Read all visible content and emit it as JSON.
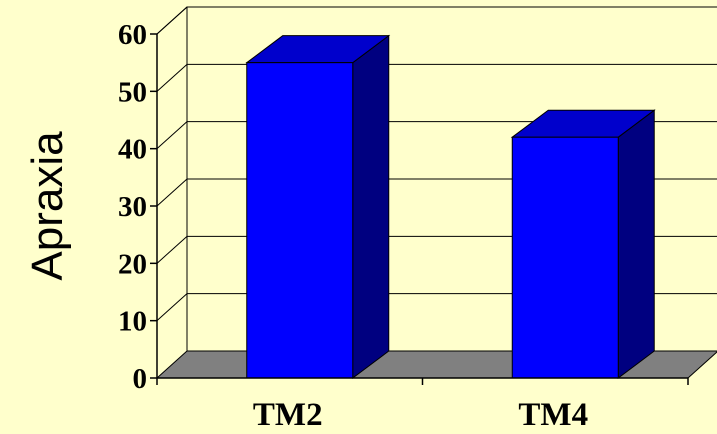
{
  "chart_data": {
    "type": "bar",
    "style": "3d",
    "categories": [
      "TM2",
      "TM4"
    ],
    "values": [
      55,
      42
    ],
    "xlabel": "",
    "ylabel": "Apraxia",
    "ylim": [
      0,
      60
    ],
    "yticks": [
      "0",
      "10",
      "20",
      "30",
      "40",
      "50",
      "60"
    ],
    "grid": true,
    "legend": "none",
    "colors": {
      "background": "#FFFFCC",
      "bar_front": "#0000FF",
      "bar_top": "#0000CC",
      "bar_side": "#000080",
      "floor": "#808080",
      "grid": "#000000"
    }
  }
}
